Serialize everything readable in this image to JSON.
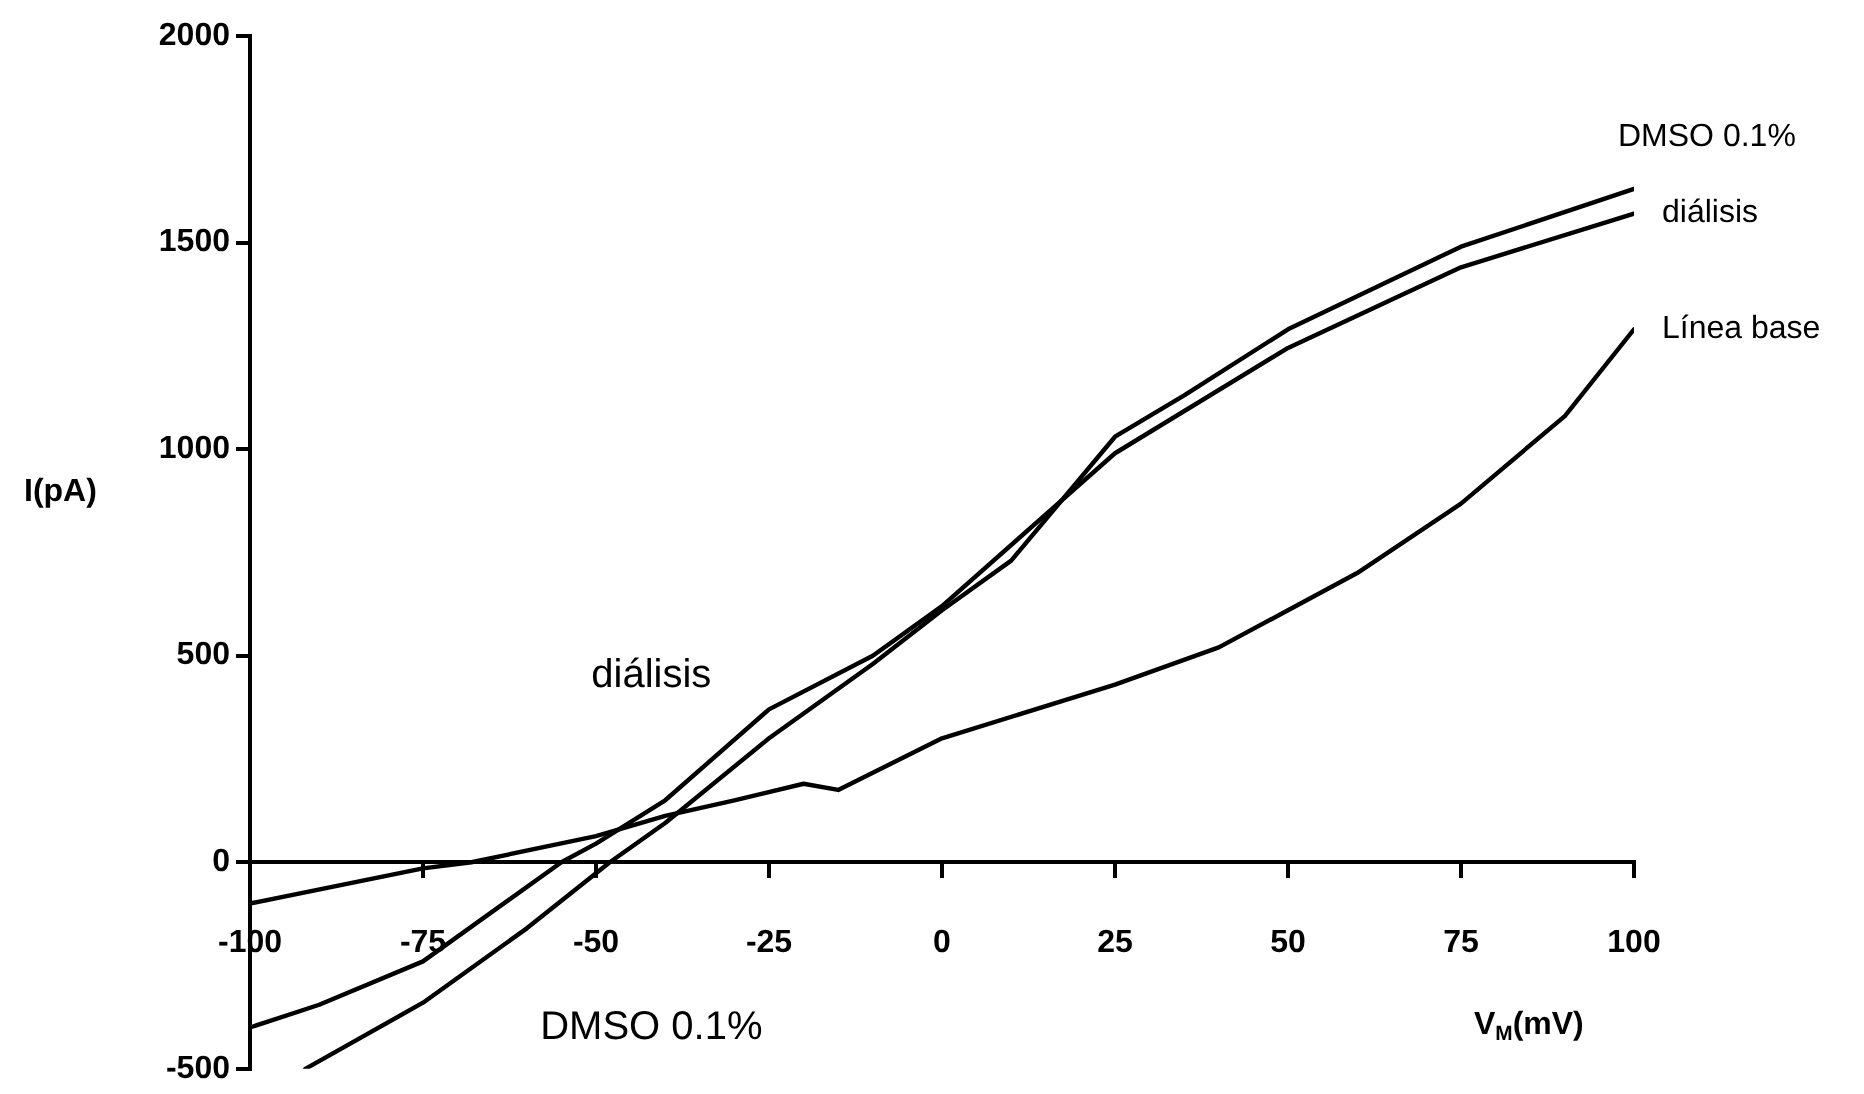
{
  "chart_data": {
    "type": "line",
    "xlabel": "V$_{M}$(mV)",
    "ylabel": "I(pA)",
    "xlim": [
      -100,
      100
    ],
    "xticks": [
      -100,
      -75,
      -50,
      -25,
      0,
      25,
      50,
      75,
      100
    ],
    "ylim": [
      -500,
      2000
    ],
    "yticks": [
      -500,
      0,
      500,
      1000,
      1500,
      2000
    ],
    "grid": false,
    "legend": false,
    "marker": "none",
    "line_style": "solid",
    "series": [
      {
        "name": "DMSO 0.1%",
        "color": "#000000",
        "x": [
          -92,
          -75,
          -60,
          -48,
          -40,
          -25,
          -10,
          0,
          10,
          25,
          35,
          50,
          75,
          100
        ],
        "values": [
          -500,
          -340,
          -160,
          0,
          95,
          300,
          480,
          610,
          730,
          1030,
          1130,
          1290,
          1490,
          1630
        ]
      },
      {
        "name": "diálisis",
        "color": "#000000",
        "x": [
          -100,
          -90,
          -75,
          -55,
          -50,
          -40,
          -25,
          -10,
          0,
          25,
          50,
          75,
          100
        ],
        "values": [
          -400,
          -345,
          -240,
          0,
          45,
          150,
          370,
          500,
          620,
          990,
          1245,
          1440,
          1570
        ]
      },
      {
        "name": "Línea base",
        "color": "#000000",
        "x": [
          -100,
          -75,
          -68,
          -50,
          -40,
          -30,
          -20,
          -15,
          0,
          25,
          40,
          50,
          60,
          75,
          90,
          100
        ],
        "values": [
          -100,
          -15,
          0,
          63,
          112,
          150,
          190,
          175,
          300,
          430,
          520,
          610,
          700,
          868,
          1080,
          1290
        ]
      }
    ],
    "annotations": [
      "diálisis",
      "DMSO 0.1%"
    ]
  }
}
